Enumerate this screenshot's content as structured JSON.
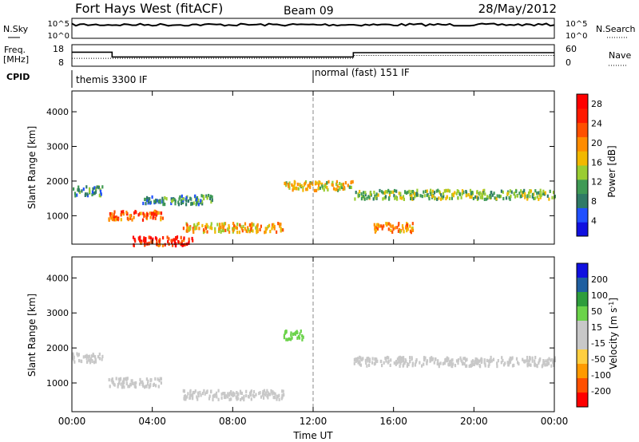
{
  "header": {
    "radar": "Fort Hays West (fitACF)",
    "beam": "Beam 09",
    "date": "28/May/2012"
  },
  "noise_panel": {
    "left_label": "N.Sky",
    "left_ticks": [
      "10^5",
      "10^0"
    ],
    "right_ticks": [
      "10^5",
      "10^0"
    ],
    "right_label": "N.Search"
  },
  "freq_panel": {
    "left_label_top": "Freq.",
    "left_label_bottom": "[MHz]",
    "left_ticks": [
      "18",
      "8"
    ],
    "right_ticks": [
      "60",
      "0"
    ],
    "right_label": "Nave"
  },
  "cpid_panel": {
    "label": "CPID",
    "modes": [
      {
        "name": "themis 3300 IF",
        "start_hour": 0
      },
      {
        "name": "normal (fast) 151 IF",
        "start_hour": 12
      }
    ]
  },
  "colors": {
    "power": [
      "#1010e0",
      "#2050ff",
      "#2f7a66",
      "#3f9a55",
      "#9acd32",
      "#f2b800",
      "#ff8c00",
      "#ff5000",
      "#ff1a00",
      "#ff0000"
    ],
    "velocity": [
      "#ff0000",
      "#ff5000",
      "#ff9a00",
      "#ffcf40",
      "#c8c8c8",
      "#c8c8c8",
      "#6bd34a",
      "#2e9d3c",
      "#1f5fa0",
      "#1010e0"
    ]
  },
  "chart_data": [
    {
      "type": "heatmap",
      "name": "power-panel",
      "x": {
        "label": "",
        "range_hours": [
          0,
          24
        ]
      },
      "y": {
        "label": "Slant Range [km]",
        "range_km": [
          180,
          4600
        ],
        "ticks": [
          1000,
          2000,
          3000,
          4000
        ]
      },
      "colorbar": {
        "label": "Power [dB]",
        "ticks": [
          4,
          8,
          12,
          16,
          20,
          24,
          28
        ]
      },
      "approx_features": [
        {
          "start_hour": 0,
          "end_hour": 1.5,
          "range_km": 1750,
          "power_db": 10
        },
        {
          "start_hour": 1.8,
          "end_hour": 4.5,
          "range_km": 1050,
          "power_db": 22
        },
        {
          "start_hour": 3.5,
          "end_hour": 7.0,
          "range_km": 1500,
          "power_db": 9
        },
        {
          "start_hour": 5.5,
          "end_hour": 10.5,
          "range_km": 700,
          "power_db": 18
        },
        {
          "start_hour": 3.0,
          "end_hour": 6.0,
          "range_km": 300,
          "power_db": 26
        },
        {
          "start_hour": 10.5,
          "end_hour": 14.0,
          "range_km": 1900,
          "power_db": 16
        },
        {
          "start_hour": 14.0,
          "end_hour": 24.0,
          "range_km": 1650,
          "power_db": 13
        },
        {
          "start_hour": 15.0,
          "end_hour": 17.0,
          "range_km": 700,
          "power_db": 20
        }
      ]
    },
    {
      "type": "heatmap",
      "name": "velocity-panel",
      "x": {
        "label": "Time UT",
        "range_hours": [
          0,
          24
        ],
        "ticks": [
          "00:00",
          "04:00",
          "08:00",
          "12:00",
          "16:00",
          "20:00",
          "00:00"
        ]
      },
      "y": {
        "label": "Slant Range [km]",
        "range_km": [
          180,
          4600
        ],
        "ticks": [
          1000,
          2000,
          3000,
          4000
        ]
      },
      "colorbar": {
        "label": "Velocity [m s^-1]",
        "ticks": [
          200,
          100,
          50,
          15,
          -15,
          -50,
          -100,
          -200
        ]
      },
      "approx_features": [
        {
          "start_hour": 0,
          "end_hour": 1.5,
          "range_km": 1750,
          "velocity": 0
        },
        {
          "start_hour": 1.8,
          "end_hour": 4.5,
          "range_km": 1050,
          "velocity": 0
        },
        {
          "start_hour": 5.5,
          "end_hour": 10.5,
          "range_km": 700,
          "velocity": 0
        },
        {
          "start_hour": 10.5,
          "end_hour": 11.5,
          "range_km": 2400,
          "velocity": 40
        },
        {
          "start_hour": 14.0,
          "end_hour": 24.0,
          "range_km": 1650,
          "velocity": 0
        }
      ]
    }
  ]
}
